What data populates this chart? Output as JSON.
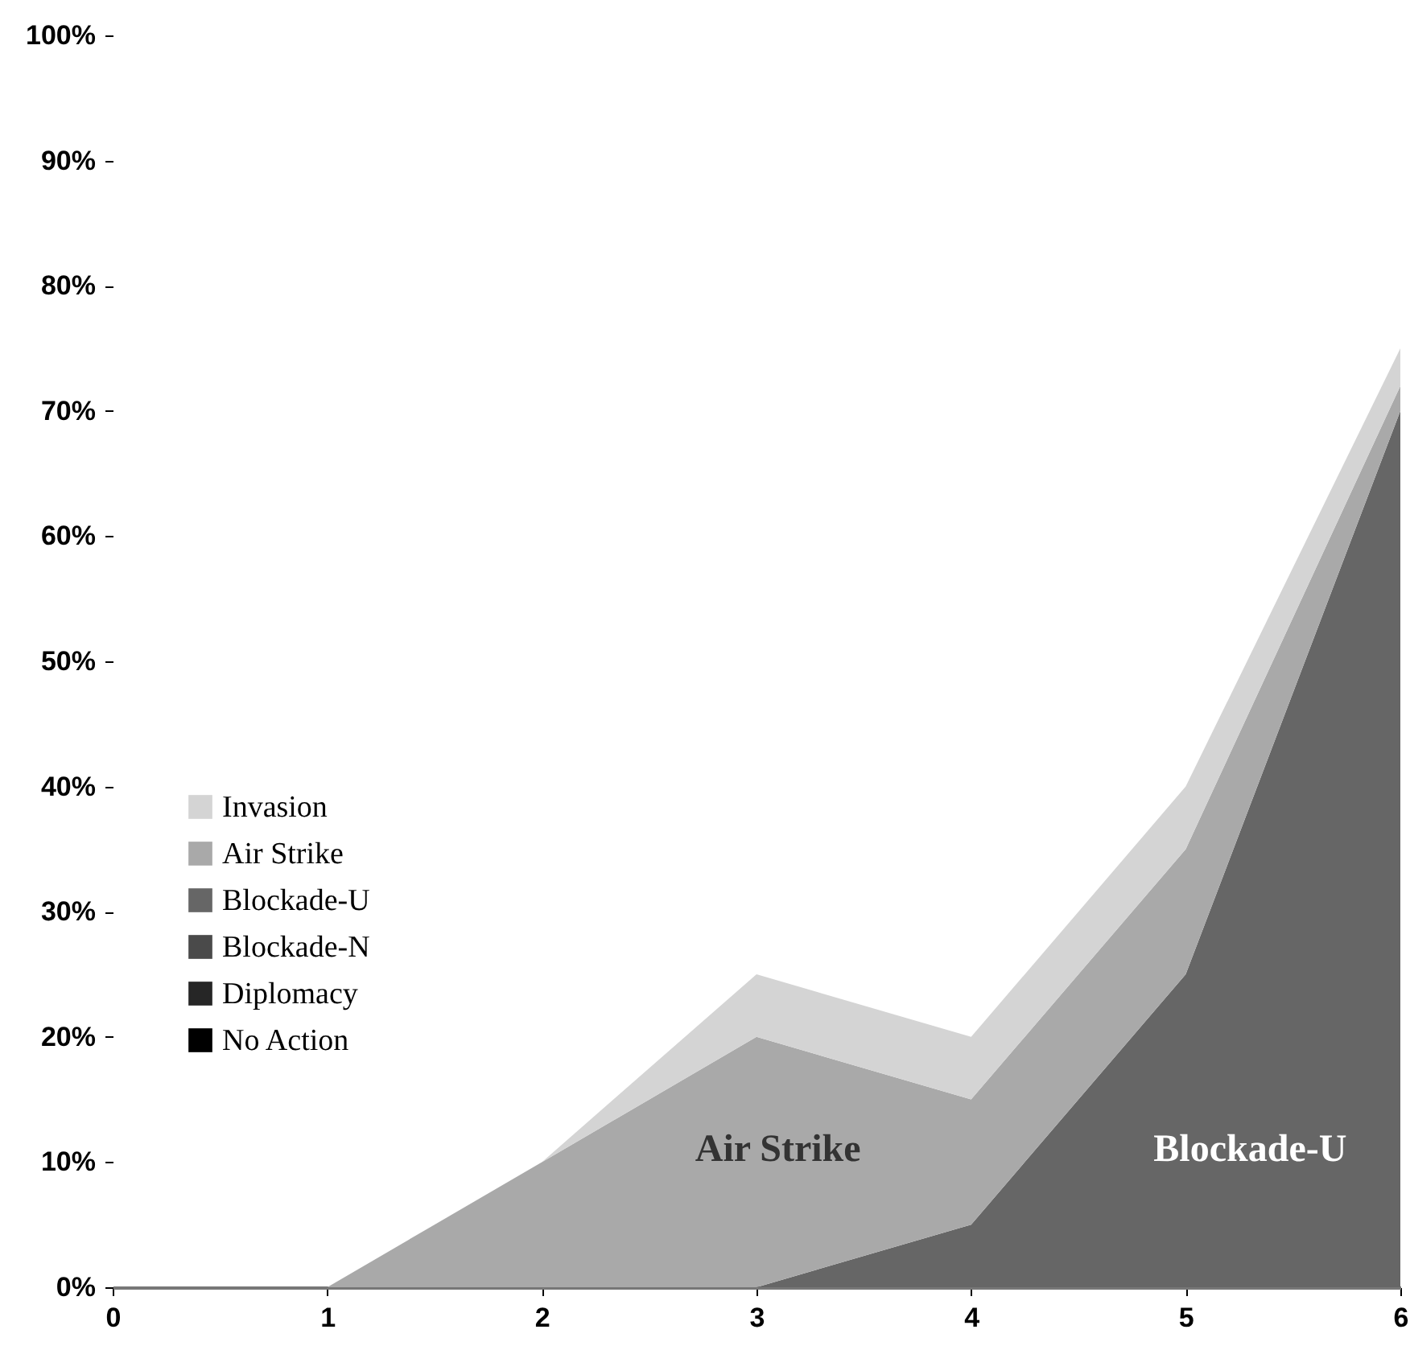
{
  "chart_data": {
    "type": "area",
    "stacked": true,
    "x": [
      0,
      1,
      2,
      3,
      4,
      5,
      6
    ],
    "series": [
      {
        "name": "No Action",
        "color": "#000000",
        "values": [
          null,
          null,
          null,
          null,
          null,
          null,
          null
        ]
      },
      {
        "name": "Diplomacy",
        "color": "#262626",
        "values": [
          null,
          null,
          null,
          null,
          null,
          null,
          null
        ]
      },
      {
        "name": "Blockade-N",
        "color": "#4a4a4a",
        "values": [
          null,
          null,
          null,
          null,
          null,
          null,
          null
        ]
      },
      {
        "name": "Blockade-U",
        "color": "#666666",
        "values": [
          0,
          0,
          0,
          0,
          5,
          25,
          70
        ]
      },
      {
        "name": "Air Strike",
        "color": "#a9a9a9",
        "values": [
          0,
          0,
          10,
          20,
          10,
          10,
          2
        ]
      },
      {
        "name": "Invasion",
        "color": "#d4d4d4",
        "values": [
          0,
          0,
          0,
          5,
          5,
          5,
          3
        ]
      }
    ],
    "xlim": [
      0,
      6
    ],
    "xticks": [
      0,
      1,
      2,
      3,
      4,
      5,
      6
    ],
    "ylim": [
      0,
      100
    ],
    "yticks": [
      {
        "value": 0,
        "label": "0%"
      },
      {
        "value": 10,
        "label": "10%"
      },
      {
        "value": 20,
        "label": "20%"
      },
      {
        "value": 30,
        "label": "30%"
      },
      {
        "value": 40,
        "label": "40%"
      },
      {
        "value": 50,
        "label": "50%"
      },
      {
        "value": 60,
        "label": "60%"
      },
      {
        "value": 70,
        "label": "70%"
      },
      {
        "value": 80,
        "label": "80%"
      },
      {
        "value": 90,
        "label": "90%"
      },
      {
        "value": 100,
        "label": "100%"
      }
    ],
    "annotations": [
      "Air Strike",
      "Blockade-U"
    ],
    "grid": false,
    "legend": "bottom left"
  }
}
